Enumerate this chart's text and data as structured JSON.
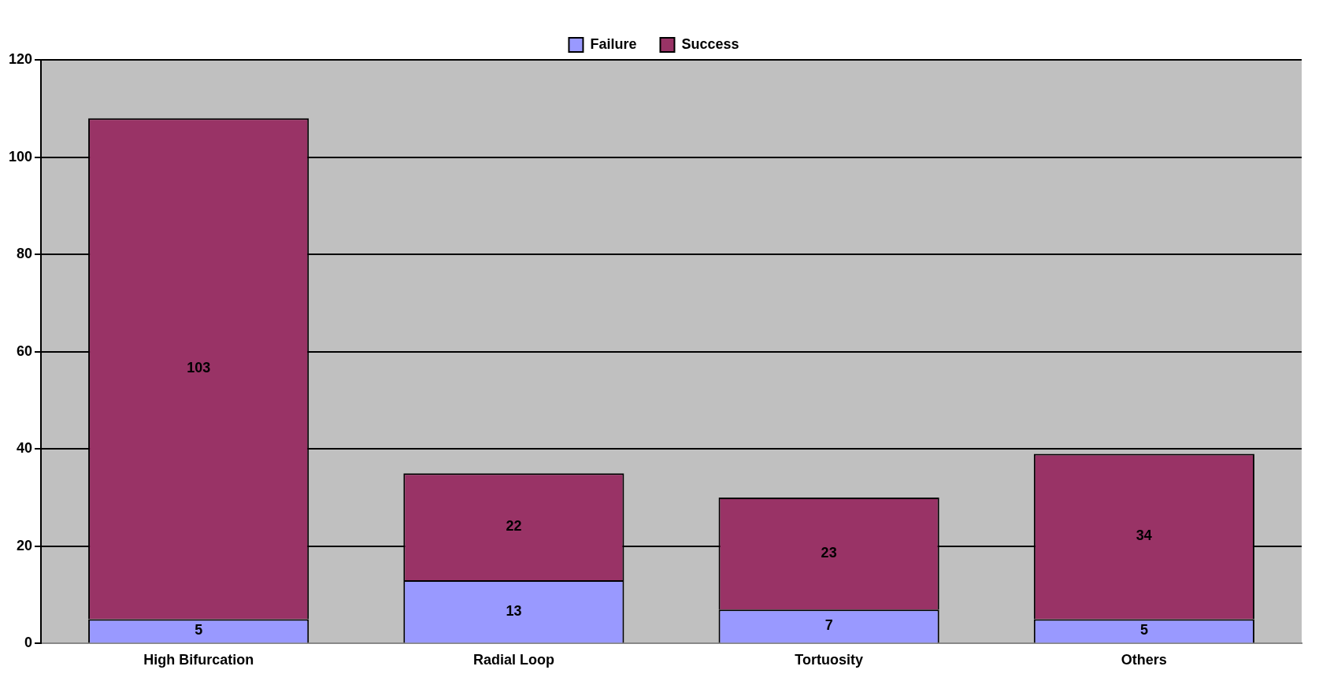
{
  "chart_data": {
    "type": "bar",
    "stacked": true,
    "categories": [
      "High Bifurcation",
      "Radial Loop",
      "Tortuosity",
      "Others"
    ],
    "series": [
      {
        "name": "Failure",
        "color": "#9999ff",
        "values": [
          5,
          13,
          7,
          5
        ]
      },
      {
        "name": "Success",
        "color": "#993366",
        "values": [
          103,
          22,
          23,
          34
        ]
      }
    ],
    "ylim": [
      0,
      120
    ],
    "yticks": [
      0,
      20,
      40,
      60,
      80,
      100,
      120
    ],
    "grid": "y",
    "legend": "top",
    "data_labels": true
  }
}
